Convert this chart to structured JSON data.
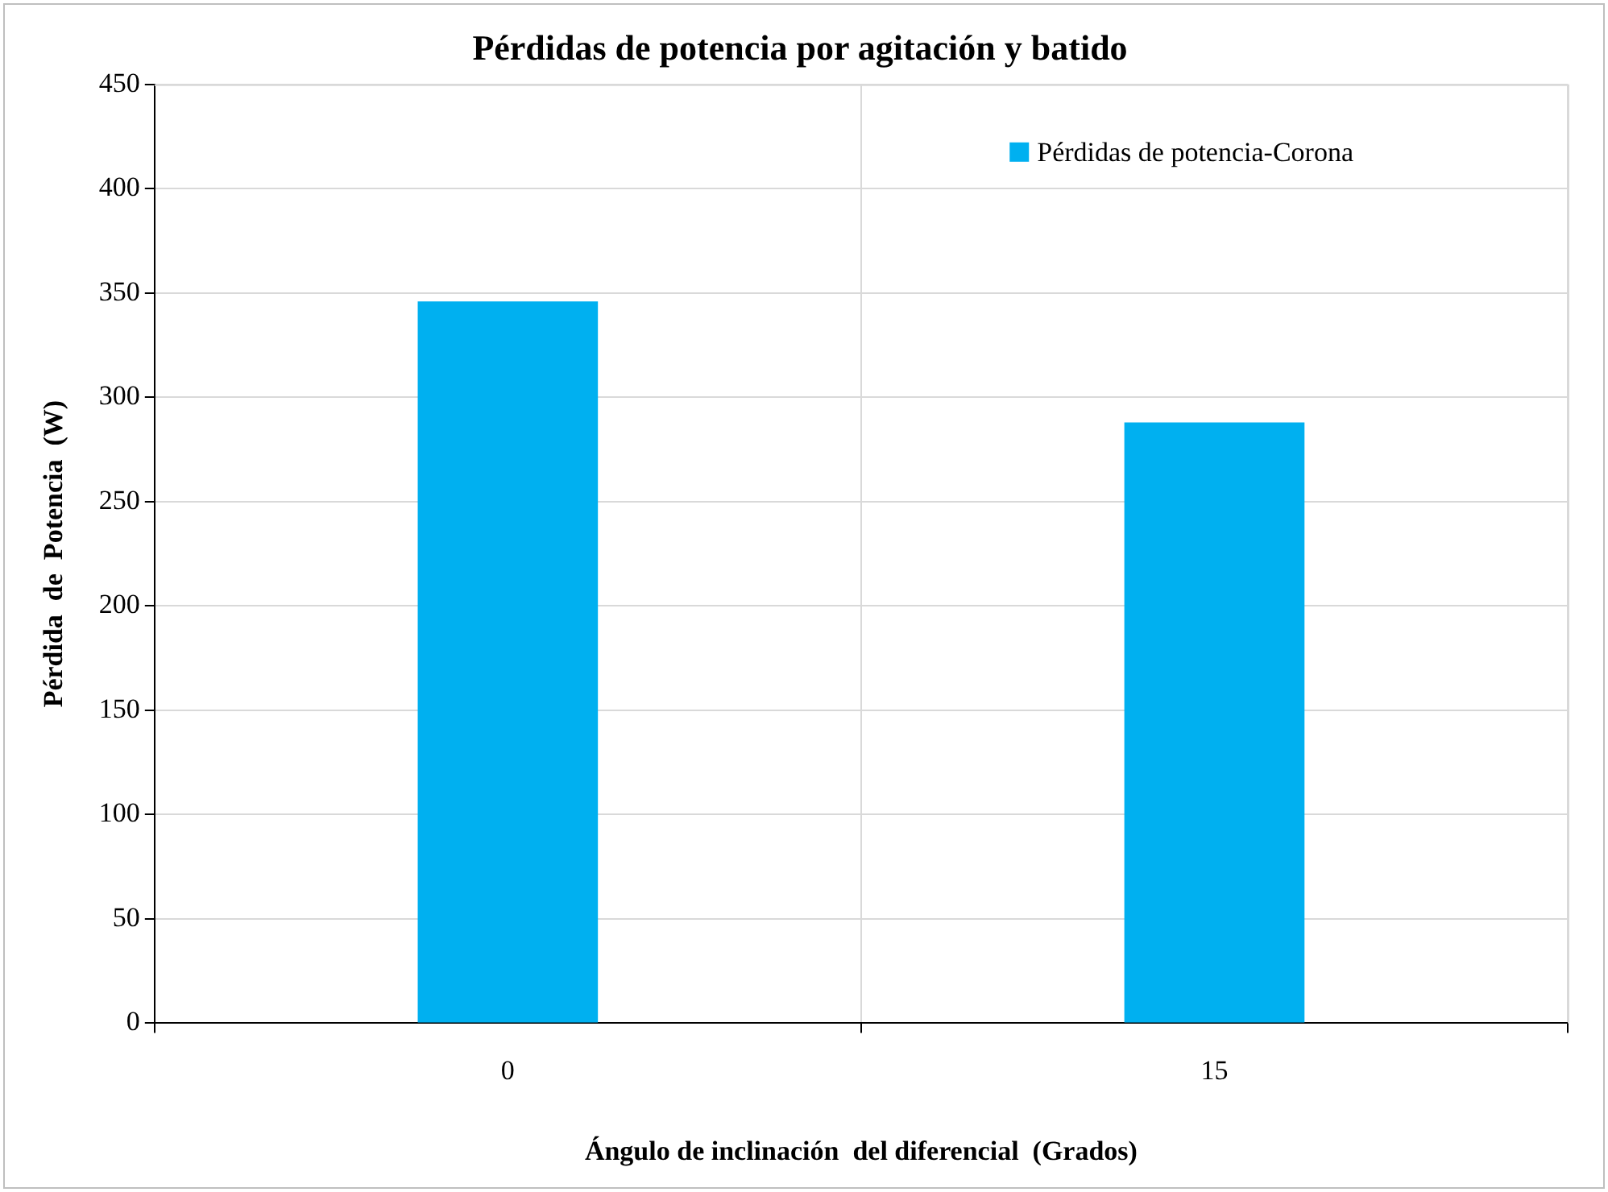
{
  "chart_data": {
    "type": "bar",
    "title": "Pérdidas de potencia por agitación y batido",
    "xlabel": "Ángulo de inclinación  del diferencial  (Grados)",
    "ylabel": "Pérdida  de  Potencia  (W)",
    "categories": [
      "0",
      "15"
    ],
    "series": [
      {
        "name": "Pérdidas de potencia-Corona",
        "color": "#00b0f0",
        "values": [
          346,
          288
        ]
      }
    ],
    "ylim": [
      0,
      450
    ],
    "yticks": [
      0,
      50,
      100,
      150,
      200,
      250,
      300,
      350,
      400,
      450
    ],
    "grid": true,
    "legend": "top right"
  }
}
